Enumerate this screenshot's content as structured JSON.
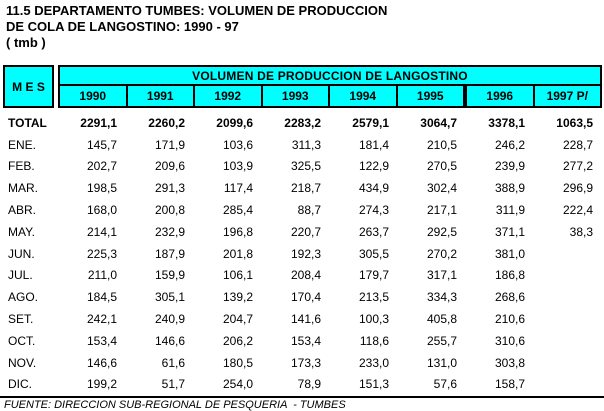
{
  "title": {
    "line1": "11.5 DEPARTAMENTO TUMBES: VOLUMEN DE PRODUCCION",
    "line2": "DE COLA DE LANGOSTINO: 1990 - 97",
    "line3": "( tmb )"
  },
  "table": {
    "corner_header": "M E S",
    "group_header": "VOLUMEN DE PRODUCCION DE LANGOSTINO",
    "year_headers": [
      "1990",
      "1991",
      "1992",
      "1993",
      "1994",
      "1995",
      "1996",
      "1997 P/"
    ],
    "rows": [
      {
        "label": "TOTAL",
        "bold": true,
        "values": [
          "2291,1",
          "2260,2",
          "2099,6",
          "2283,2",
          "2579,1",
          "3064,7",
          "3378,1",
          "1063,5"
        ]
      },
      {
        "label": "ENE.",
        "bold": false,
        "values": [
          "145,7",
          "171,9",
          "103,6",
          "311,3",
          "181,4",
          "210,5",
          "246,2",
          "228,7"
        ]
      },
      {
        "label": "FEB.",
        "bold": false,
        "values": [
          "202,7",
          "209,6",
          "103,9",
          "325,5",
          "122,9",
          "270,5",
          "239,9",
          "277,2"
        ]
      },
      {
        "label": "MAR.",
        "bold": false,
        "values": [
          "198,5",
          "291,3",
          "117,4",
          "218,7",
          "434,9",
          "302,4",
          "388,9",
          "296,9"
        ]
      },
      {
        "label": "ABR.",
        "bold": false,
        "values": [
          "168,0",
          "200,8",
          "285,4",
          "88,7",
          "274,3",
          "217,1",
          "311,9",
          "222,4"
        ]
      },
      {
        "label": "MAY.",
        "bold": false,
        "values": [
          "214,1",
          "232,9",
          "196,8",
          "220,7",
          "263,7",
          "292,5",
          "371,1",
          "38,3"
        ]
      },
      {
        "label": "JUN.",
        "bold": false,
        "values": [
          "225,3",
          "187,9",
          "201,8",
          "192,3",
          "305,5",
          "270,2",
          "381,0",
          ""
        ]
      },
      {
        "label": "JUL.",
        "bold": false,
        "values": [
          "211,0",
          "159,9",
          "106,1",
          "208,4",
          "179,7",
          "317,1",
          "186,8",
          ""
        ]
      },
      {
        "label": "AGO.",
        "bold": false,
        "values": [
          "184,5",
          "305,1",
          "139,2",
          "170,4",
          "213,5",
          "334,3",
          "268,6",
          ""
        ]
      },
      {
        "label": "SET.",
        "bold": false,
        "values": [
          "242,1",
          "240,9",
          "204,7",
          "141,6",
          "100,3",
          "405,8",
          "210,6",
          ""
        ]
      },
      {
        "label": "OCT.",
        "bold": false,
        "values": [
          "153,4",
          "146,6",
          "206,2",
          "153,4",
          "118,6",
          "255,7",
          "310,6",
          ""
        ]
      },
      {
        "label": "NOV.",
        "bold": false,
        "values": [
          "146,6",
          "61,6",
          "180,5",
          "173,3",
          "233,0",
          "131,0",
          "303,8",
          ""
        ]
      },
      {
        "label": "DIC.",
        "bold": false,
        "values": [
          "199,2",
          "51,7",
          "254,0",
          "78,9",
          "151,3",
          "57,6",
          "158,7",
          ""
        ]
      }
    ]
  },
  "footer": {
    "source": "FUENTE: DIRECCION SUB-REGIONAL DE PESQUERIA  - TUMBES"
  },
  "colors": {
    "header_bg": "#00FFFF",
    "border": "#000000",
    "text": "#000000"
  }
}
